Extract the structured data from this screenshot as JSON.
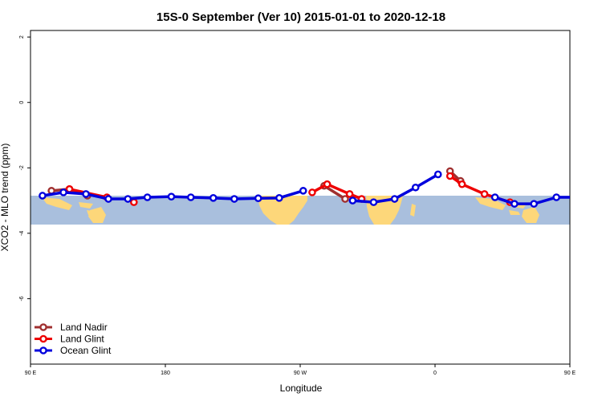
{
  "chart_data": {
    "type": "line",
    "title": "15S-0 September (Ver 10)   2015-01-01 to 2020-12-18",
    "xlabel": "Longitude",
    "ylabel": "XCO2 - MLO trend (ppm)",
    "xlim": [
      90,
      450
    ],
    "ylim": [
      -8,
      2.2
    ],
    "x_ticks": [
      {
        "value": 90,
        "label": "90 E"
      },
      {
        "value": 180,
        "label": "180"
      },
      {
        "value": 270,
        "label": "90 W"
      },
      {
        "value": 360,
        "label": "0"
      },
      {
        "value": 450,
        "label": "90 E"
      },
      {
        "value": 540,
        "label": "180"
      }
    ],
    "y_ticks": [
      {
        "value": 2,
        "label": "2"
      },
      {
        "value": 0,
        "label": "0"
      },
      {
        "value": -2,
        "label": "-2"
      },
      {
        "value": -4,
        "label": "-4"
      },
      {
        "value": -6,
        "label": "-6"
      }
    ],
    "legend_position": "bottom-left",
    "colors": {
      "land_nadir": "#a03030",
      "land_glint": "#ee0000",
      "ocean_glint": "#0000dd",
      "ocean": "#a9bfdd",
      "land": "#fdd77a"
    },
    "series": [
      {
        "name": "Land Nadir",
        "key": "land_nadir",
        "segments": [
          {
            "x": [
              104,
              116,
              128
            ],
            "y": [
              -2.7,
              -2.65,
              -2.85
            ]
          },
          {
            "x": [
              286,
              300
            ],
            "y": [
              -2.55,
              -2.95
            ]
          },
          {
            "x": [
              370,
              377
            ],
            "y": [
              -2.1,
              -2.4
            ]
          },
          {
            "x": [
              464,
              476,
              488
            ],
            "y": [
              -2.7,
              -2.65,
              -2.85
            ]
          }
        ]
      },
      {
        "name": "Land Glint",
        "key": "land_glint",
        "segments": [
          {
            "x": [
              116,
              141
            ],
            "y": [
              -2.65,
              -2.9
            ]
          },
          {
            "x": [
              159
            ],
            "y": [
              -3.05
            ]
          },
          {
            "x": [
              278,
              288,
              303,
              311
            ],
            "y": [
              -2.75,
              -2.5,
              -2.8,
              -2.95
            ]
          },
          {
            "x": [
              370,
              378,
              393,
              410
            ],
            "y": [
              -2.25,
              -2.5,
              -2.8,
              -3.05
            ]
          },
          {
            "x": [
              476,
              506
            ],
            "y": [
              -2.65,
              -2.9
            ]
          }
        ]
      },
      {
        "name": "Ocean Glint",
        "key": "ocean_glint",
        "segments": [
          {
            "x": [
              98,
              112,
              127,
              142,
              155,
              168,
              184,
              197,
              212,
              226,
              242,
              256,
              272
            ],
            "y": [
              -2.85,
              -2.75,
              -2.8,
              -2.95,
              -2.95,
              -2.9,
              -2.88,
              -2.9,
              -2.92,
              -2.95,
              -2.93,
              -2.92,
              -2.7
            ]
          },
          {
            "x": [
              305,
              319,
              333,
              347,
              362
            ],
            "y": [
              -3.0,
              -3.05,
              -2.95,
              -2.6,
              -2.2
            ]
          },
          {
            "x": [
              400,
              413,
              426,
              441,
              456,
              472,
              487,
              500,
              514,
              526
            ],
            "y": [
              -2.9,
              -3.1,
              -3.1,
              -2.9,
              -2.9,
              -2.75,
              -2.8,
              -2.95,
              -2.95,
              -2.9
            ]
          }
        ]
      }
    ]
  }
}
